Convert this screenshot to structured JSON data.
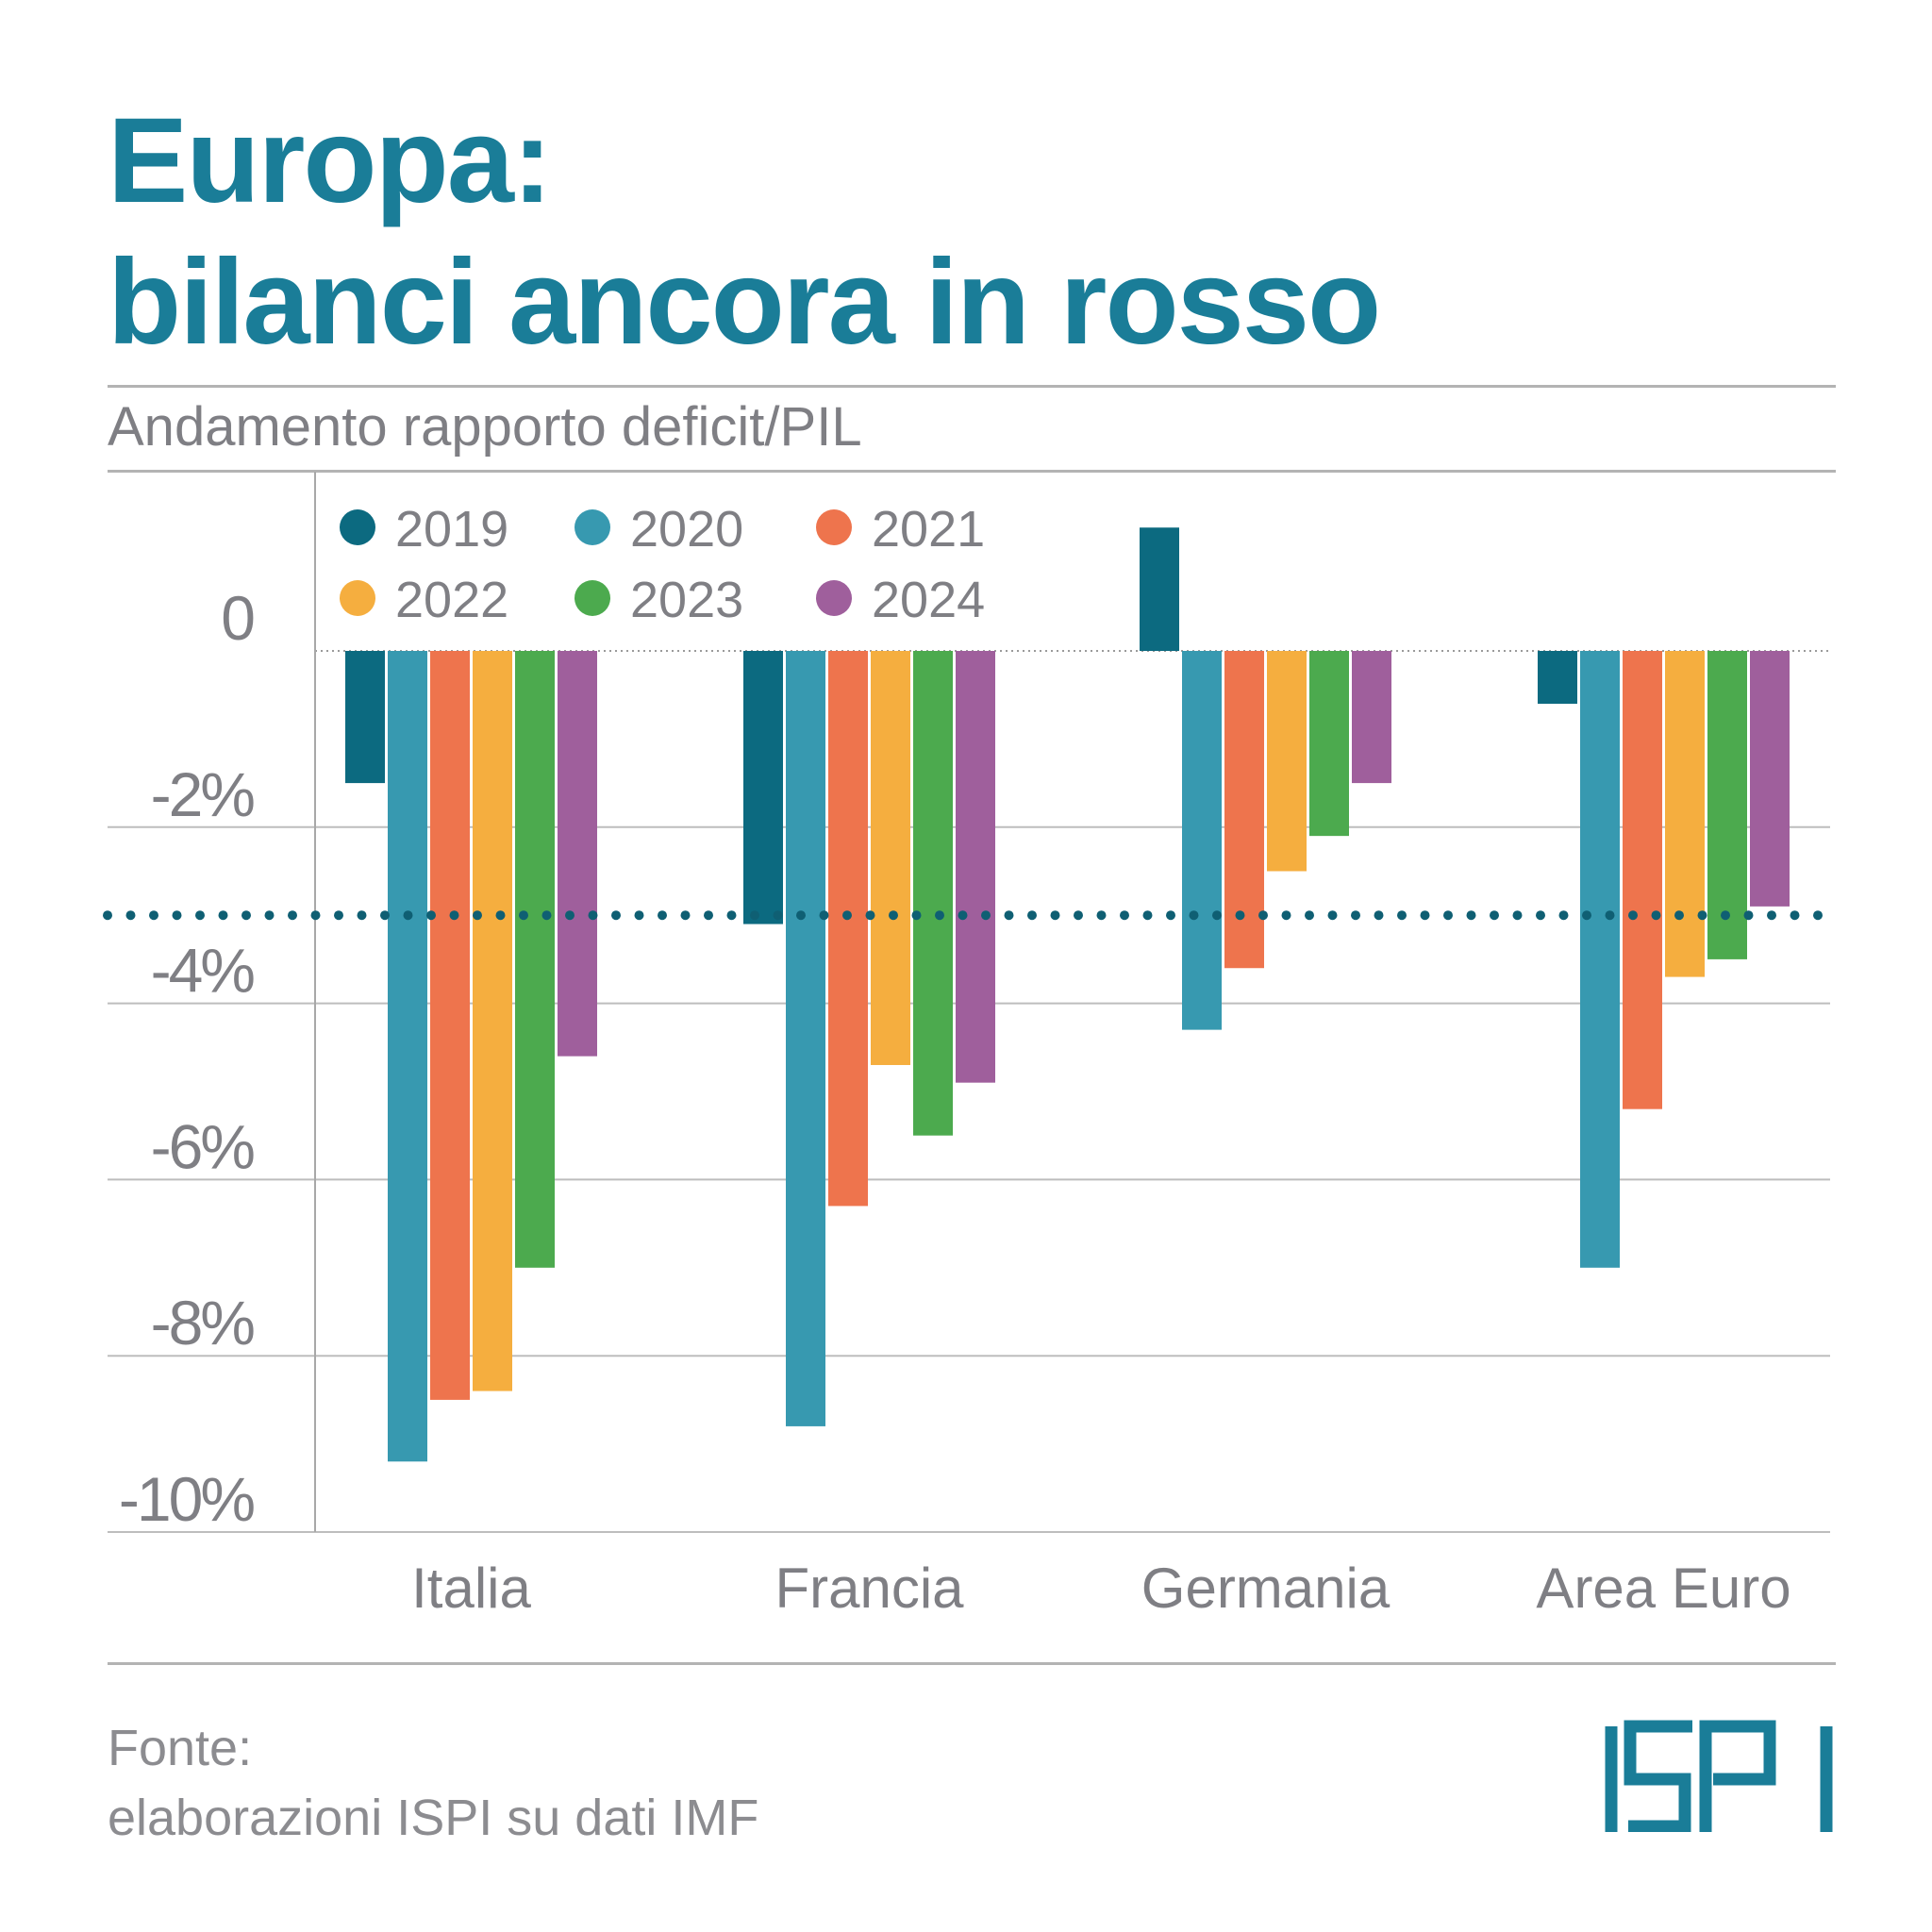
{
  "header": {
    "title_line1": "Europa:",
    "title_line2": "bilanci ancora in rosso",
    "subtitle": "Andamento rapporto deficit/PIL"
  },
  "source": {
    "line1": "Fonte:",
    "line2": "elaborazioni ISPI su dati IMF"
  },
  "logo": {
    "text": "ISPI",
    "color": "#1a7d98"
  },
  "colors": {
    "title": "#1a7d98",
    "grid": "#bdbdbd",
    "text": "#7f7f84",
    "threshold": "#0f5f73"
  },
  "chart_data": {
    "type": "bar",
    "title": "Andamento rapporto deficit/PIL",
    "categories": [
      "Italia",
      "Francia",
      "Germania",
      "Area Euro"
    ],
    "series": [
      {
        "name": "2019",
        "color": "#0c6a80",
        "values": [
          -1.5,
          -3.1,
          1.4,
          -0.6
        ]
      },
      {
        "name": "2020",
        "color": "#3799b0",
        "values": [
          -9.2,
          -8.8,
          -4.3,
          -7.0
        ]
      },
      {
        "name": "2021",
        "color": "#ee744d",
        "values": [
          -8.5,
          -6.3,
          -3.6,
          -5.2
        ]
      },
      {
        "name": "2022",
        "color": "#f5ae3f",
        "values": [
          -8.4,
          -4.7,
          -2.5,
          -3.7
        ]
      },
      {
        "name": "2023",
        "color": "#4caa4e",
        "values": [
          -7.0,
          -5.5,
          -2.1,
          -3.5
        ]
      },
      {
        "name": "2024",
        "color": "#9f5f9c",
        "values": [
          -4.6,
          -4.9,
          -1.5,
          -2.9
        ]
      }
    ],
    "yticks": [
      {
        "value": 0,
        "label": "0"
      },
      {
        "value": -2,
        "label": "-2%"
      },
      {
        "value": -4,
        "label": "-4%"
      },
      {
        "value": -6,
        "label": "-6%"
      },
      {
        "value": -8,
        "label": "-8%"
      },
      {
        "value": -10,
        "label": "-10%"
      }
    ],
    "ylim": [
      -10,
      1.6
    ],
    "threshold": -3,
    "legend_position": "top-left",
    "xlabel": "",
    "ylabel": ""
  }
}
